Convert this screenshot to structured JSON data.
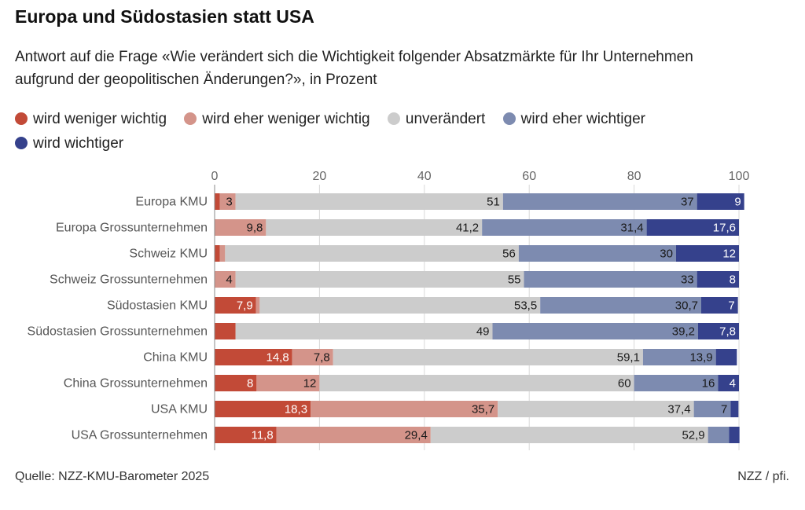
{
  "header": {
    "title": "Europa und Südostasien statt USA",
    "subtitle": "Antwort auf die Frage «Wie verändert sich die Wichtigkeit folgender Absatzmärkte für Ihr Unternehmen aufgrund der geopolitischen Änderungen?», in Prozent"
  },
  "legend": [
    {
      "label": "wird weniger wichtig",
      "color": "#c24a37"
    },
    {
      "label": "wird eher weniger wichtig",
      "color": "#d4948a"
    },
    {
      "label": "unverändert",
      "color": "#cccccc"
    },
    {
      "label": "wird eher wichtiger",
      "color": "#7d8bb0"
    },
    {
      "label": "wird wichtiger",
      "color": "#35418c"
    }
  ],
  "footer": {
    "source": "Quelle: NZZ-KMU-Barometer 2025",
    "credit": "NZZ / pfi."
  },
  "chart_data": {
    "type": "bar",
    "orientation": "horizontal",
    "stacked": true,
    "xlim": [
      0,
      100
    ],
    "xticks": [
      0,
      20,
      40,
      60,
      80,
      100
    ],
    "grid": true,
    "legend_position": "top",
    "categories": [
      "Europa KMU",
      "Europa Grossunternehmen",
      "Schweiz KMU",
      "Schweiz Grossunternehmen",
      "Südostasien KMU",
      "Südostasien Grossunternehmen",
      "China KMU",
      "China Grossunternehmen",
      "USA KMU",
      "USA Grossunternehmen"
    ],
    "series": [
      {
        "name": "wird weniger wichtig",
        "color": "#c24a37",
        "label_color": "#ffffff",
        "values": [
          1,
          0,
          1,
          0,
          7.9,
          4,
          14.8,
          8,
          18.3,
          11.8
        ],
        "labels": [
          "",
          "",
          "",
          "",
          "7,9",
          "",
          "14,8",
          "8",
          "18,3",
          "11,8"
        ]
      },
      {
        "name": "wird eher weniger wichtig",
        "color": "#d4948a",
        "label_color": "#1a1a1a",
        "values": [
          3,
          9.8,
          1,
          4,
          0.7,
          0,
          7.8,
          12,
          35.7,
          29.4
        ],
        "labels": [
          "3",
          "9,8",
          "",
          "4",
          "",
          "",
          "7,8",
          "12",
          "35,7",
          "29,4"
        ]
      },
      {
        "name": "unverändert",
        "color": "#cccccc",
        "label_color": "#1a1a1a",
        "values": [
          51,
          41.2,
          56,
          55,
          53.5,
          49,
          59.1,
          60,
          37.4,
          52.9
        ],
        "labels": [
          "51",
          "41,2",
          "56",
          "55",
          "53,5",
          "49",
          "59,1",
          "60",
          "37,4",
          "52,9"
        ]
      },
      {
        "name": "wird eher wichtiger",
        "color": "#7d8bb0",
        "label_color": "#1a1a1a",
        "values": [
          37,
          31.4,
          30,
          33,
          30.7,
          39.2,
          13.9,
          16,
          7,
          4
        ],
        "labels": [
          "37",
          "31,4",
          "30",
          "33",
          "30,7",
          "39,2",
          "13,9",
          "16",
          "7",
          ""
        ]
      },
      {
        "name": "wird wichtiger",
        "color": "#35418c",
        "label_color": "#ffffff",
        "values": [
          9,
          17.6,
          12,
          8,
          7,
          7.8,
          4,
          4,
          1.5,
          2
        ],
        "labels": [
          "9",
          "17,6",
          "12",
          "8",
          "7",
          "7,8",
          "",
          "4",
          "",
          ""
        ]
      }
    ]
  }
}
